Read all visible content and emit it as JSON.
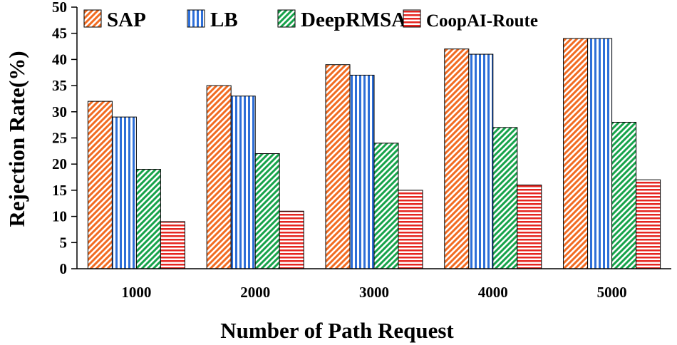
{
  "chart_data": {
    "type": "bar",
    "title": "",
    "xlabel": "Number of Path Request",
    "ylabel": "Rejection Rate(%)",
    "ylim": [
      0,
      50
    ],
    "yticks": [
      0,
      5,
      10,
      15,
      20,
      25,
      30,
      35,
      40,
      45,
      50
    ],
    "categories": [
      "1000",
      "2000",
      "3000",
      "4000",
      "5000"
    ],
    "legend_position": "top",
    "series": [
      {
        "name": "SAP",
        "values": [
          32,
          35,
          39,
          42,
          44
        ],
        "color": "#f26b21",
        "pattern": "diagonal"
      },
      {
        "name": "LB",
        "values": [
          29,
          33,
          37,
          41,
          44
        ],
        "color": "#2e6fd8",
        "pattern": "vertical"
      },
      {
        "name": "DeepRMSA",
        "values": [
          19,
          22,
          24,
          27,
          28
        ],
        "color": "#16a34a",
        "pattern": "diagonal"
      },
      {
        "name": "CoopAI-Route",
        "values": [
          9,
          11,
          15,
          16,
          17
        ],
        "color": "#e52520",
        "pattern": "horizontal"
      }
    ]
  }
}
